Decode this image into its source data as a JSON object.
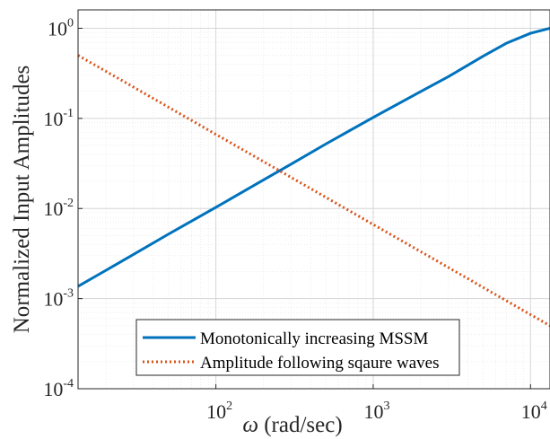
{
  "chart_data": {
    "type": "line",
    "xscale": "log",
    "yscale": "log",
    "xlim": [
      13.3,
      13300
    ],
    "ylim": [
      0.0001,
      1.6
    ],
    "grid": true,
    "minor_grid": true,
    "xlabel_symbol": "ω",
    "xlabel_unit": " (rad/sec)",
    "ylabel": "Normalized Input Amplitudes",
    "xticks": [
      {
        "value": 100,
        "base": "10",
        "exp": "2"
      },
      {
        "value": 1000,
        "base": "10",
        "exp": "3"
      },
      {
        "value": 10000,
        "base": "10",
        "exp": "4"
      }
    ],
    "yticks": [
      {
        "value": 1,
        "base": "10",
        "exp": "0"
      },
      {
        "value": 0.1,
        "base": "10",
        "exp": "-1"
      },
      {
        "value": 0.01,
        "base": "10",
        "exp": "-2"
      },
      {
        "value": 0.001,
        "base": "10",
        "exp": "-3"
      },
      {
        "value": 0.0001,
        "base": "10",
        "exp": "-4"
      }
    ],
    "legend_position": "bottom-center",
    "series": [
      {
        "name": "Monotonically increasing MSSM",
        "color": "#0072BD",
        "style": "solid",
        "x": [
          13.3,
          20,
          30,
          50,
          100,
          200,
          300,
          500,
          1000,
          2000,
          3000,
          5000,
          7000,
          10000,
          13300
        ],
        "y": [
          0.00137,
          0.00206,
          0.0031,
          0.0052,
          0.0103,
          0.0207,
          0.031,
          0.052,
          0.1025,
          0.198,
          0.29,
          0.49,
          0.68,
          0.88,
          1.0
        ]
      },
      {
        "name": "Amplitude following sqaure waves",
        "color": "#D95319",
        "style": "dotted",
        "x": [
          13.3,
          20,
          30,
          50,
          100,
          200,
          300,
          500,
          1000,
          2000,
          3000,
          5000,
          10000,
          13300
        ],
        "y": [
          0.5,
          0.333,
          0.222,
          0.133,
          0.0665,
          0.0333,
          0.0222,
          0.0133,
          0.00665,
          0.00333,
          0.00222,
          0.00133,
          0.000665,
          0.0005
        ]
      }
    ]
  }
}
